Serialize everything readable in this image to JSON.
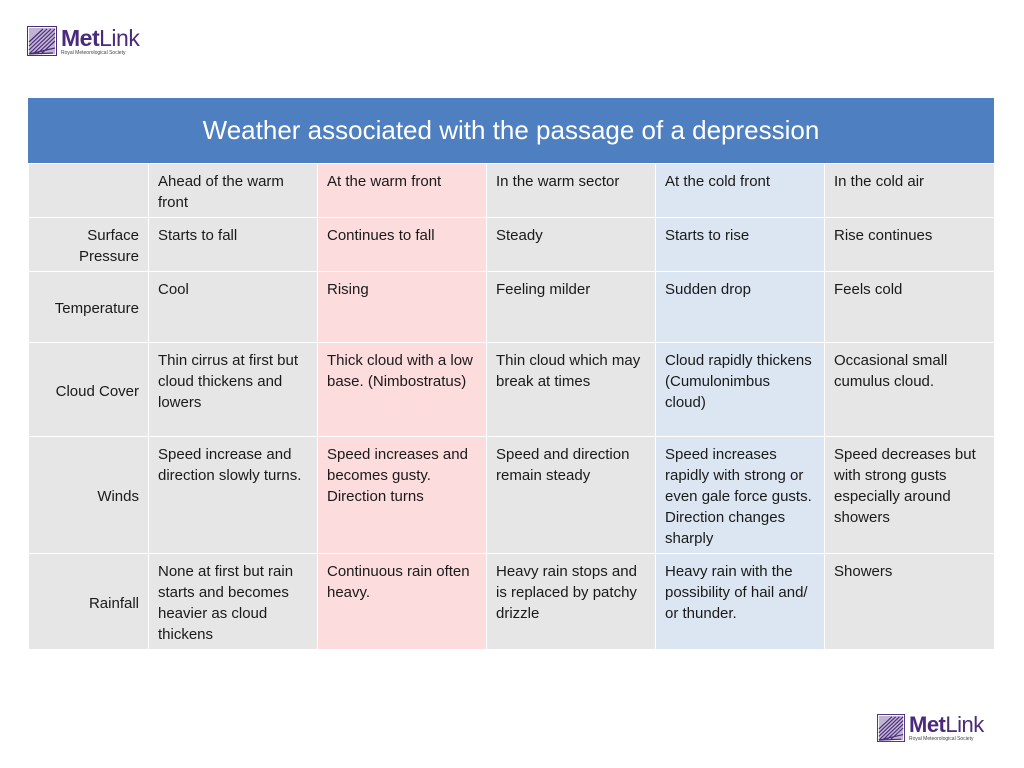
{
  "logo": {
    "brand_bold": "Met",
    "brand_light": "Link",
    "subtitle": "Royal Meteorological Society"
  },
  "title": "Weather associated with the passage of a depression",
  "colors": {
    "title_bar": "#4e7fc1",
    "warm_front": "#fcdcdc",
    "cold_front": "#dbe6f2",
    "default_cell": "#e6e6e6",
    "logo_purple": "#4b2a7b"
  },
  "columns": [
    "",
    "Ahead of the warm front",
    "At the warm front",
    "In the warm sector",
    "At the cold front",
    "In the cold air"
  ],
  "rows": [
    {
      "label": "Surface Pressure",
      "cells": [
        "Starts to fall",
        "Continues to fall",
        "Steady",
        "Starts to rise",
        "Rise continues"
      ]
    },
    {
      "label": "Temperature",
      "cells": [
        "Cool",
        "Rising",
        "Feeling milder",
        "Sudden drop",
        "Feels cold"
      ]
    },
    {
      "label": "Cloud Cover",
      "cells": [
        "Thin cirrus at first but cloud thickens and lowers",
        "Thick cloud with a low base. (Nimbostratus)",
        "Thin cloud which may break at times",
        "Cloud rapidly thickens (Cumulonimbus cloud)",
        "Occasional small cumulus cloud."
      ]
    },
    {
      "label": "Winds",
      "cells": [
        "Speed increase and direction slowly turns.",
        "Speed increases and becomes gusty. Direction turns",
        "Speed and direction remain steady",
        "Speed increases rapidly with strong or even gale force gusts. Direction changes sharply",
        "Speed decreases but with strong gusts especially around showers"
      ]
    },
    {
      "label": "Rainfall",
      "cells": [
        "None at first but rain starts and becomes heavier as cloud thickens",
        "Continuous rain often heavy.",
        "Heavy rain stops and is replaced by patchy drizzle",
        "Heavy rain with the possibility of hail and/ or thunder.",
        "Showers"
      ]
    }
  ]
}
